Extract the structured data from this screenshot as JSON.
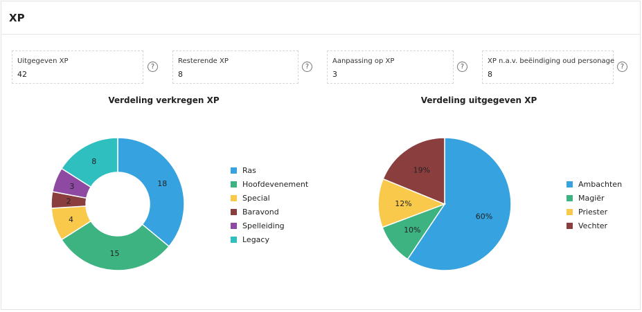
{
  "header": {
    "title": "XP"
  },
  "stats": [
    {
      "label": "Uitgegeven XP",
      "value": "42",
      "help": "?"
    },
    {
      "label": "Resterende XP",
      "value": "8",
      "help": "?"
    },
    {
      "label": "Aanpassing op XP",
      "value": "3",
      "help": "?"
    },
    {
      "label": "XP n.a.v. beëindiging oud personage",
      "value": "8",
      "help": "?"
    }
  ],
  "chart_data": [
    {
      "type": "pie",
      "title": "Verdeling verkregen XP",
      "donut": true,
      "legend_position": "right",
      "categories": [
        "Ras",
        "Hoofdevenement",
        "Special",
        "Baravond",
        "Spelleiding",
        "Legacy"
      ],
      "values": [
        18,
        15,
        4,
        2,
        3,
        8
      ],
      "labels": [
        "18",
        "15",
        "4",
        "2",
        "3",
        "8"
      ],
      "colors": [
        "#36a2e0",
        "#3db382",
        "#f8c94a",
        "#8b3e3e",
        "#8e4aa2",
        "#30bfbf"
      ]
    },
    {
      "type": "pie",
      "title": "Verdeling uitgegeven XP",
      "donut": false,
      "legend_position": "right",
      "categories": [
        "Ambachten",
        "Magiër",
        "Priester",
        "Vechter"
      ],
      "values": [
        60,
        10,
        12,
        19
      ],
      "labels": [
        "60%",
        "10%",
        "12%",
        "19%"
      ],
      "colors": [
        "#36a2e0",
        "#3db382",
        "#f8c94a",
        "#8b3e3e"
      ]
    }
  ]
}
